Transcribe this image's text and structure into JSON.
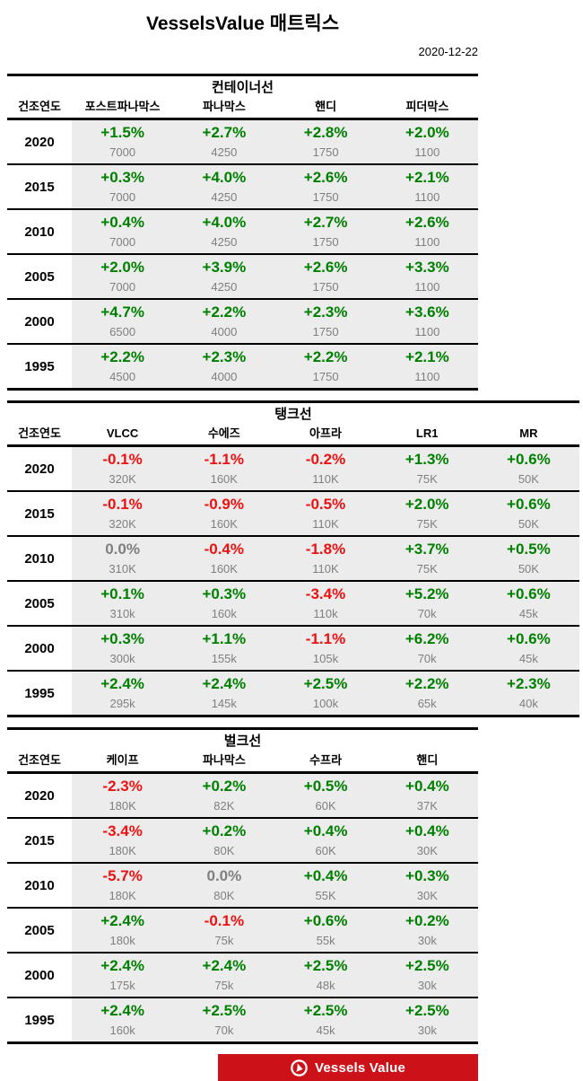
{
  "page": {
    "title": "VesselsValue 매트릭스",
    "date": "2020-12-22"
  },
  "colors": {
    "positive": "#008000",
    "negative": "#ee1111",
    "neutral": "#7f7f7f",
    "brand_red": "#cc1118"
  },
  "tables": [
    {
      "section_title": "컨테이너선",
      "year_header": "건조연도",
      "columns": [
        "포스트파나막스",
        "파나막스",
        "핸디",
        "피더막스"
      ],
      "rows": [
        {
          "year": "2020",
          "cells": [
            {
              "pct": "+1.5%",
              "size": "7000"
            },
            {
              "pct": "+2.7%",
              "size": "4250"
            },
            {
              "pct": "+2.8%",
              "size": "1750"
            },
            {
              "pct": "+2.0%",
              "size": "1100"
            }
          ]
        },
        {
          "year": "2015",
          "cells": [
            {
              "pct": "+0.3%",
              "size": "7000"
            },
            {
              "pct": "+4.0%",
              "size": "4250"
            },
            {
              "pct": "+2.6%",
              "size": "1750"
            },
            {
              "pct": "+2.1%",
              "size": "1100"
            }
          ]
        },
        {
          "year": "2010",
          "cells": [
            {
              "pct": "+0.4%",
              "size": "7000"
            },
            {
              "pct": "+4.0%",
              "size": "4250"
            },
            {
              "pct": "+2.7%",
              "size": "1750"
            },
            {
              "pct": "+2.6%",
              "size": "1100"
            }
          ]
        },
        {
          "year": "2005",
          "cells": [
            {
              "pct": "+2.0%",
              "size": "7000"
            },
            {
              "pct": "+3.9%",
              "size": "4250"
            },
            {
              "pct": "+2.6%",
              "size": "1750"
            },
            {
              "pct": "+3.3%",
              "size": "1100"
            }
          ]
        },
        {
          "year": "2000",
          "cells": [
            {
              "pct": "+4.7%",
              "size": "6500"
            },
            {
              "pct": "+2.2%",
              "size": "4000"
            },
            {
              "pct": "+2.3%",
              "size": "1750"
            },
            {
              "pct": "+3.6%",
              "size": "1100"
            }
          ]
        },
        {
          "year": "1995",
          "cells": [
            {
              "pct": "+2.2%",
              "size": "4500"
            },
            {
              "pct": "+2.3%",
              "size": "4000"
            },
            {
              "pct": "+2.2%",
              "size": "1750"
            },
            {
              "pct": "+2.1%",
              "size": "1100"
            }
          ]
        }
      ]
    },
    {
      "section_title": "탱크선",
      "year_header": "건조연도",
      "columns": [
        "VLCC",
        "수에즈",
        "아프라",
        "LR1",
        "MR"
      ],
      "rows": [
        {
          "year": "2020",
          "cells": [
            {
              "pct": "-0.1%",
              "size": "320K"
            },
            {
              "pct": "-1.1%",
              "size": "160K"
            },
            {
              "pct": "-0.2%",
              "size": "110K"
            },
            {
              "pct": "+1.3%",
              "size": "75K"
            },
            {
              "pct": "+0.6%",
              "size": "50K"
            }
          ]
        },
        {
          "year": "2015",
          "cells": [
            {
              "pct": "-0.1%",
              "size": "320K"
            },
            {
              "pct": "-0.9%",
              "size": "160K"
            },
            {
              "pct": "-0.5%",
              "size": "110K"
            },
            {
              "pct": "+2.0%",
              "size": "75K"
            },
            {
              "pct": "+0.6%",
              "size": "50K"
            }
          ]
        },
        {
          "year": "2010",
          "cells": [
            {
              "pct": "0.0%",
              "size": "310K"
            },
            {
              "pct": "-0.4%",
              "size": "160K"
            },
            {
              "pct": "-1.8%",
              "size": "110K"
            },
            {
              "pct": "+3.7%",
              "size": "75K"
            },
            {
              "pct": "+0.5%",
              "size": "50K"
            }
          ]
        },
        {
          "year": "2005",
          "cells": [
            {
              "pct": "+0.1%",
              "size": "310k"
            },
            {
              "pct": "+0.3%",
              "size": "160k"
            },
            {
              "pct": "-3.4%",
              "size": "110k"
            },
            {
              "pct": "+5.2%",
              "size": "70k"
            },
            {
              "pct": "+0.6%",
              "size": "45k"
            }
          ]
        },
        {
          "year": "2000",
          "cells": [
            {
              "pct": "+0.3%",
              "size": "300k"
            },
            {
              "pct": "+1.1%",
              "size": "155k"
            },
            {
              "pct": "-1.1%",
              "size": "105k"
            },
            {
              "pct": "+6.2%",
              "size": "70k"
            },
            {
              "pct": "+0.6%",
              "size": "45k"
            }
          ]
        },
        {
          "year": "1995",
          "cells": [
            {
              "pct": "+2.4%",
              "size": "295k"
            },
            {
              "pct": "+2.4%",
              "size": "145k"
            },
            {
              "pct": "+2.5%",
              "size": "100k"
            },
            {
              "pct": "+2.2%",
              "size": "65k"
            },
            {
              "pct": "+2.3%",
              "size": "40k"
            }
          ]
        }
      ]
    },
    {
      "section_title": "벌크선",
      "year_header": "건조연도",
      "columns": [
        "케이프",
        "파나막스",
        "수프라",
        "핸디"
      ],
      "rows": [
        {
          "year": "2020",
          "cells": [
            {
              "pct": "-2.3%",
              "size": "180K"
            },
            {
              "pct": "+0.2%",
              "size": "82K"
            },
            {
              "pct": "+0.5%",
              "size": "60K"
            },
            {
              "pct": "+0.4%",
              "size": "37K"
            }
          ]
        },
        {
          "year": "2015",
          "cells": [
            {
              "pct": "-3.4%",
              "size": "180K"
            },
            {
              "pct": "+0.2%",
              "size": "80K"
            },
            {
              "pct": "+0.4%",
              "size": "60K"
            },
            {
              "pct": "+0.4%",
              "size": "30K"
            }
          ]
        },
        {
          "year": "2010",
          "cells": [
            {
              "pct": "-5.7%",
              "size": "180K"
            },
            {
              "pct": "0.0%",
              "size": "80K"
            },
            {
              "pct": "+0.4%",
              "size": "55K"
            },
            {
              "pct": "+0.3%",
              "size": "30K"
            }
          ]
        },
        {
          "year": "2005",
          "cells": [
            {
              "pct": "+2.4%",
              "size": "180k"
            },
            {
              "pct": "-0.1%",
              "size": "75k"
            },
            {
              "pct": "+0.6%",
              "size": "55k"
            },
            {
              "pct": "+0.2%",
              "size": "30k"
            }
          ]
        },
        {
          "year": "2000",
          "cells": [
            {
              "pct": "+2.4%",
              "size": "175k"
            },
            {
              "pct": "+2.4%",
              "size": "75k"
            },
            {
              "pct": "+2.5%",
              "size": "48k"
            },
            {
              "pct": "+2.5%",
              "size": "30k"
            }
          ]
        },
        {
          "year": "1995",
          "cells": [
            {
              "pct": "+2.4%",
              "size": "160k"
            },
            {
              "pct": "+2.5%",
              "size": "70k"
            },
            {
              "pct": "+2.5%",
              "size": "45k"
            },
            {
              "pct": "+2.5%",
              "size": "30k"
            }
          ]
        }
      ]
    }
  ],
  "footer": {
    "brand": "Vessels Value"
  }
}
